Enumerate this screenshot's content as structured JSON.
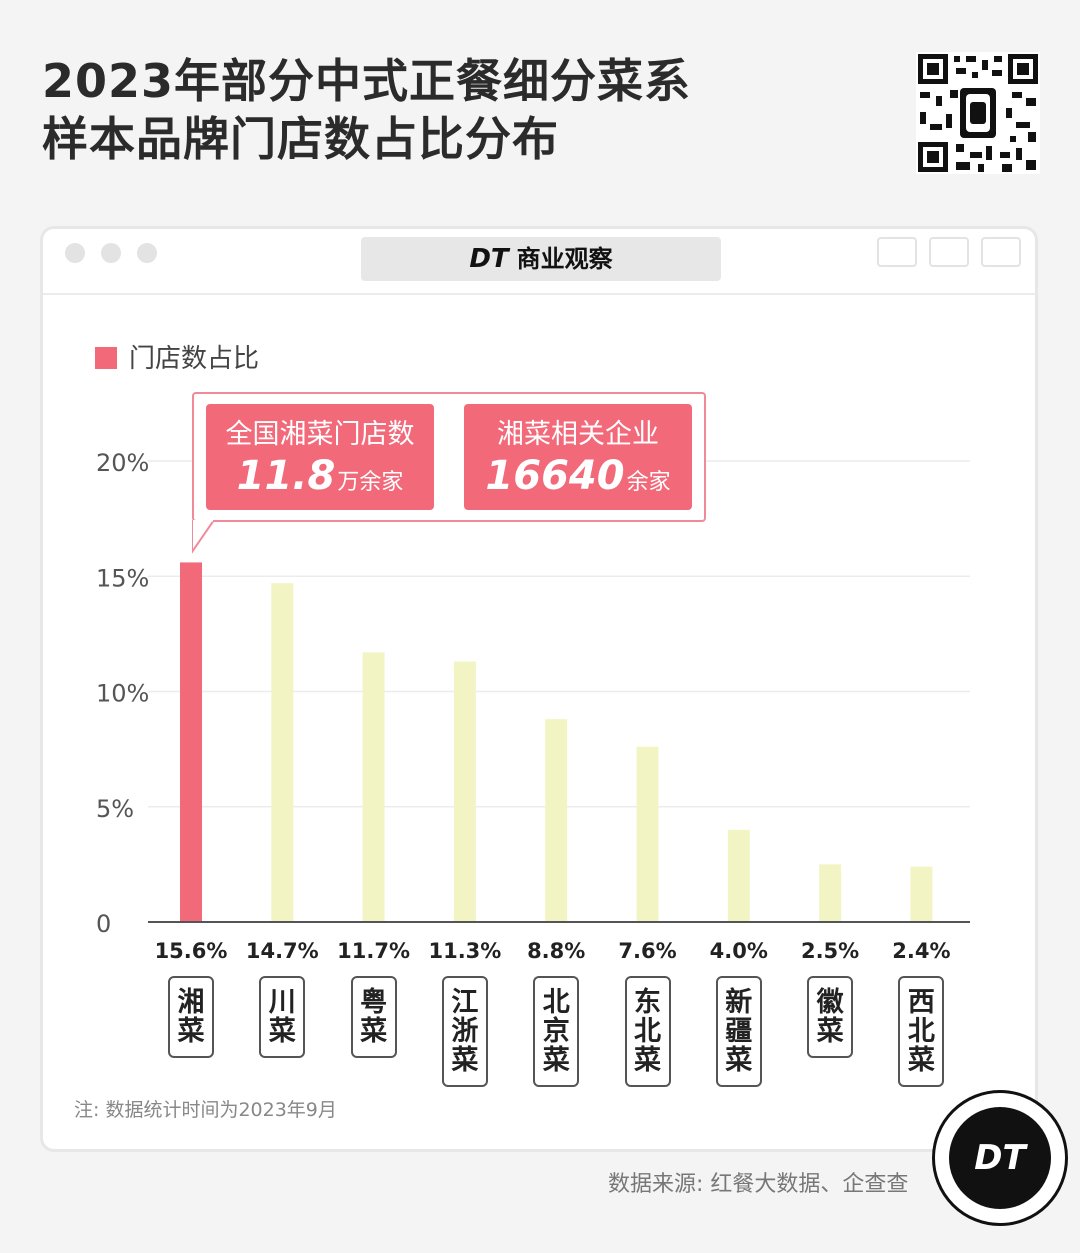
{
  "title": {
    "line1": "2023年部分中式正餐细分菜系",
    "line2": "样本品牌门店数占比分布"
  },
  "window": {
    "brand_mark": "DT",
    "brand_name": "商业观察"
  },
  "legend": {
    "label": "门店数占比"
  },
  "callout": {
    "stat1_label": "全国湘菜门店数",
    "stat1_value": "11.8",
    "stat1_unit": "万余家",
    "stat2_label": "湘菜相关企业",
    "stat2_value": "16640",
    "stat2_unit": "余家"
  },
  "chart_data": {
    "type": "bar",
    "categories": [
      "湘菜",
      "川菜",
      "粤菜",
      "江浙菜",
      "北京菜",
      "东北菜",
      "新疆菜",
      "徽菜",
      "西北菜"
    ],
    "values": [
      15.6,
      14.7,
      11.7,
      11.3,
      8.8,
      7.6,
      4.0,
      2.5,
      2.4
    ],
    "value_labels": [
      "15.6%",
      "14.7%",
      "11.7%",
      "11.3%",
      "8.8%",
      "7.6%",
      "4.0%",
      "2.5%",
      "2.4%"
    ],
    "series": [
      {
        "name": "门店数占比",
        "values": [
          15.6,
          14.7,
          11.7,
          11.3,
          8.8,
          7.6,
          4.0,
          2.5,
          2.4
        ]
      }
    ],
    "ylim": [
      0,
      20
    ],
    "yticks": [
      "0",
      "5%",
      "10%",
      "15%",
      "20%"
    ],
    "grid": true,
    "highlight_index": 0,
    "highlight_color": "#f2697a",
    "bar_color": "#f3f4c4"
  },
  "note": "注: 数据统计时间为2023年9月",
  "source": "数据来源: 红餐大数据、企查查",
  "logo": {
    "text": "DT"
  }
}
